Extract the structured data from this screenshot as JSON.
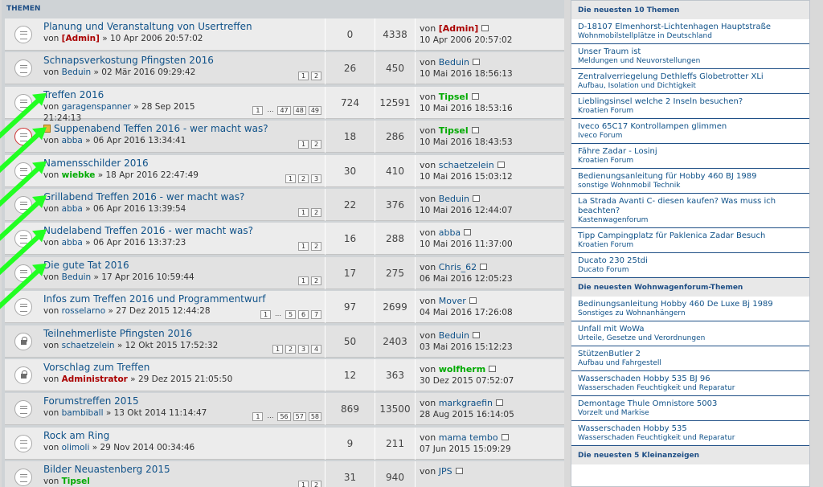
{
  "forum": {
    "header": "THEMEN",
    "rows": [
      {
        "title": "Planung und Veranstaltung von Usertreffen",
        "by": "[Admin]",
        "by_style": "admin",
        "date": "10 Apr 2006 20:57:02",
        "pages": [],
        "replies": "0",
        "views": "4338",
        "last_by": "[Admin]",
        "last_style": "admin",
        "last_time": "10 Apr 2006 20:57:02",
        "icon": "normal"
      },
      {
        "title": "Schnapsverkostung Pfingsten 2016",
        "by": "Beduin",
        "by_style": "",
        "date": "02 Mär 2016 09:29:42",
        "pages": [
          "1",
          "2"
        ],
        "replies": "26",
        "views": "450",
        "last_by": "Beduin",
        "last_style": "",
        "last_time": "10 Mai 2016 18:56:13",
        "icon": "normal"
      },
      {
        "title": "Treffen 2016",
        "by": "garagenspanner",
        "by_style": "",
        "date": "28 Sep 2015",
        "date2": "21:24:13",
        "pages": [
          "1",
          "…",
          "47",
          "48",
          "49"
        ],
        "replies": "724",
        "views": "12591",
        "last_by": "Tipsel",
        "last_style": "green",
        "last_time": "10 Mai 2016 18:53:16",
        "icon": "normal"
      },
      {
        "title": "Suppenabend Teffen 2016 - wer macht was?",
        "by": "abba",
        "by_style": "",
        "date": "06 Apr 2016 13:34:41",
        "pages": [
          "1",
          "2"
        ],
        "replies": "18",
        "views": "286",
        "last_by": "Tipsel",
        "last_style": "green",
        "last_time": "10 Mai 2016 18:43:53",
        "icon": "hot",
        "sticky": true
      },
      {
        "title": "Namensschilder 2016",
        "by": "wiebke",
        "by_style": "green",
        "date": "18 Apr 2016 22:47:49",
        "pages": [
          "1",
          "2",
          "3"
        ],
        "replies": "30",
        "views": "410",
        "last_by": "schaetzelein",
        "last_style": "",
        "last_time": "10 Mai 2016 15:03:12",
        "icon": "normal"
      },
      {
        "title": "Grillabend Treffen 2016 - wer macht was?",
        "by": "abba",
        "by_style": "",
        "date": "06 Apr 2016 13:39:54",
        "pages": [
          "1",
          "2"
        ],
        "replies": "22",
        "views": "376",
        "last_by": "Beduin",
        "last_style": "",
        "last_time": "10 Mai 2016 12:44:07",
        "icon": "normal"
      },
      {
        "title": "Nudelabend Treffen 2016 - wer macht was?",
        "by": "abba",
        "by_style": "",
        "date": "06 Apr 2016 13:37:23",
        "pages": [
          "1",
          "2"
        ],
        "replies": "16",
        "views": "288",
        "last_by": "abba",
        "last_style": "",
        "last_time": "10 Mai 2016 11:37:00",
        "icon": "normal"
      },
      {
        "title": "Die gute Tat 2016",
        "by": "Beduin",
        "by_style": "",
        "date": "17 Apr 2016 10:59:44",
        "pages": [
          "1",
          "2"
        ],
        "replies": "17",
        "views": "275",
        "last_by": "Chris_62",
        "last_style": "",
        "last_time": "06 Mai 2016 12:05:23",
        "icon": "normal"
      },
      {
        "title": "Infos zum Treffen 2016 und Programmentwurf",
        "by": "rosselarno",
        "by_style": "",
        "date": "27 Dez 2015 12:44:28",
        "pages": [
          "1",
          "…",
          "5",
          "6",
          "7"
        ],
        "replies": "97",
        "views": "2699",
        "last_by": "Mover",
        "last_style": "",
        "last_time": "04 Mai 2016 17:26:08",
        "icon": "normal"
      },
      {
        "title": "Teilnehmerliste Pfingsten 2016",
        "by": "schaetzelein",
        "by_style": "",
        "date": "12 Okt 2015 17:52:32",
        "pages": [
          "1",
          "2",
          "3",
          "4"
        ],
        "replies": "50",
        "views": "2403",
        "last_by": "Beduin",
        "last_style": "",
        "last_time": "03 Mai 2016 15:12:23",
        "icon": "locked"
      },
      {
        "title": "Vorschlag zum Treffen",
        "by": "Administrator",
        "by_style": "admin",
        "date": "29 Dez 2015 21:05:50",
        "pages": [],
        "replies": "12",
        "views": "363",
        "last_by": "wolfherm",
        "last_style": "green",
        "last_time": "30 Dez 2015 07:52:07",
        "icon": "locked"
      },
      {
        "title": "Forumstreffen 2015",
        "by": "bambiball",
        "by_style": "",
        "date": "13 Okt 2014 11:14:47",
        "pages": [
          "1",
          "…",
          "56",
          "57",
          "58"
        ],
        "replies": "869",
        "views": "13500",
        "last_by": "markgraefin",
        "last_style": "",
        "last_time": "28 Aug 2015 16:14:05",
        "icon": "normal"
      },
      {
        "title": "Rock am Ring",
        "by": "olimoli",
        "by_style": "",
        "date": "29 Nov 2014 00:34:46",
        "pages": [],
        "replies": "9",
        "views": "211",
        "last_by": "mama tembo",
        "last_style": "",
        "last_time": "07 Jun 2015 15:09:29",
        "icon": "normal"
      },
      {
        "title": "Bilder Neuastenberg 2015",
        "by": "Tipsel",
        "by_style": "green",
        "date": "",
        "pages": [
          "1",
          "2"
        ],
        "replies": "31",
        "views": "940",
        "last_by": "JPS",
        "last_style": "",
        "last_time": "",
        "icon": "normal"
      }
    ],
    "von": "von",
    "sep": "»"
  },
  "sidebar": {
    "sections": [
      {
        "heading": "Die neuesten 10 Themen",
        "items": [
          {
            "t": "D-18107 Elmenhorst-Lichtenhagen Hauptstraße",
            "f": "Wohnmobilstellplätze in Deutschland"
          },
          {
            "t": "Unser Traum ist",
            "f": "Meldungen und Neuvorstellungen"
          },
          {
            "t": "Zentralverriegelung Dethleffs Globetrotter XLi",
            "f": "Aufbau, Isolation und Dichtigkeit"
          },
          {
            "t": "Lieblingsinsel welche 2 Inseln besuchen?",
            "f": "Kroatien Forum"
          },
          {
            "t": "Iveco 65C17 Kontrollampen glimmen",
            "f": "Iveco Forum"
          },
          {
            "t": "Fähre Zadar - Losinj",
            "f": "Kroatien Forum"
          },
          {
            "t": "Bedienungsanleitung für Hobby 460 BJ 1989",
            "f": "sonstige Wohnmobil Technik"
          },
          {
            "t": "La Strada Avanti C- diesen kaufen? Was muss ich beachten?",
            "f": "Kastenwagenforum"
          },
          {
            "t": "Tipp Campingplatz für Paklenica Zadar Besuch",
            "f": "Kroatien Forum"
          },
          {
            "t": "Ducato 230 25tdi",
            "f": "Ducato Forum"
          }
        ]
      },
      {
        "heading": "Die neuesten Wohnwagenforum-Themen",
        "items": [
          {
            "t": "Bedinungsanleitung Hobby 460 De Luxe Bj 1989",
            "f": "Sonstiges zu Wohnanhängern"
          },
          {
            "t": "Unfall mit WoWa",
            "f": "Urteile, Gesetze und Verordnungen"
          },
          {
            "t": "StützenButler 2",
            "f": "Aufbau und Fahrgestell"
          },
          {
            "t": "Wasserschaden Hobby 535 BJ 96",
            "f": "Wasserschaden Feuchtigkeit und Reparatur"
          },
          {
            "t": "Demontage Thule Omnistore 5003",
            "f": "Vorzelt und Markise"
          },
          {
            "t": "Wasserschaden Hobby 535",
            "f": "Wasserschaden Feuchtigkeit und Reparatur"
          }
        ]
      },
      {
        "heading": "Die neuesten 5 Kleinanzeigen",
        "items": []
      }
    ]
  },
  "colors": {
    "arrow": "#22ff22",
    "link": "#105289",
    "admin": "#aa0000",
    "green_user": "#00aa00"
  }
}
